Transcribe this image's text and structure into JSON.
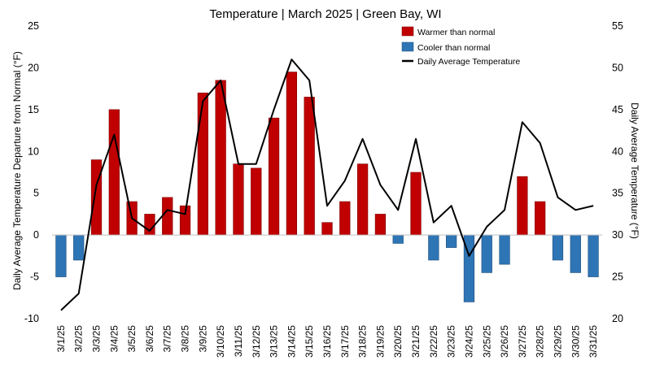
{
  "chart_data": {
    "type": "bar",
    "title": "Temperature | March 2025 | Green Bay, WI",
    "ylabel_left": "Daily Average Temperature Departure from Normal (°F)",
    "ylabel_right": "Daily Average Temperature (°F)",
    "ylim_left": [
      -10,
      25
    ],
    "yticks_left": [
      -10,
      -5,
      0,
      5,
      10,
      15,
      20,
      25
    ],
    "ylim_right": [
      20,
      55
    ],
    "yticks_right": [
      20,
      25,
      30,
      35,
      40,
      45,
      50,
      55
    ],
    "grid": false,
    "legend_position": "top-right",
    "colors": {
      "warm": "#c00000",
      "cool": "#2e75b6",
      "line": "#000000"
    },
    "categories": [
      "3/1/25",
      "3/2/25",
      "3/3/25",
      "3/4/25",
      "3/5/25",
      "3/6/25",
      "3/7/25",
      "3/8/25",
      "3/9/25",
      "3/10/25",
      "3/11/25",
      "3/12/25",
      "3/13/25",
      "3/14/25",
      "3/15/25",
      "3/16/25",
      "3/17/25",
      "3/18/25",
      "3/19/25",
      "3/20/25",
      "3/21/25",
      "3/22/25",
      "3/23/25",
      "3/24/25",
      "3/25/25",
      "3/26/25",
      "3/27/25",
      "3/28/25",
      "3/29/25",
      "3/30/25",
      "3/31/25"
    ],
    "series": [
      {
        "name": "Warmer than normal / Cooler than normal",
        "type": "bar",
        "axis": "left",
        "values": [
          -5,
          -3,
          9,
          15,
          4,
          2.5,
          4.5,
          3.5,
          17,
          18.5,
          8.5,
          8,
          14,
          19.5,
          16.5,
          1.5,
          4,
          8.5,
          2.5,
          -1,
          7.5,
          -3,
          -1.5,
          -8,
          -4.5,
          -3.5,
          7,
          4,
          -3,
          -4.5,
          -5
        ]
      },
      {
        "name": "Daily Average Temperature",
        "type": "line",
        "axis": "right",
        "values": [
          21,
          23,
          36,
          42,
          32,
          30.5,
          33,
          32.5,
          46,
          48.5,
          38.5,
          38.5,
          45,
          51,
          48.5,
          33.5,
          36.5,
          41.5,
          36,
          33,
          41.5,
          31.5,
          33.5,
          27.5,
          31,
          33,
          43.5,
          41,
          34.5,
          33,
          33.5
        ]
      }
    ],
    "legend": [
      "Warmer than normal",
      "Cooler than normal",
      "Daily Average Temperature"
    ]
  }
}
